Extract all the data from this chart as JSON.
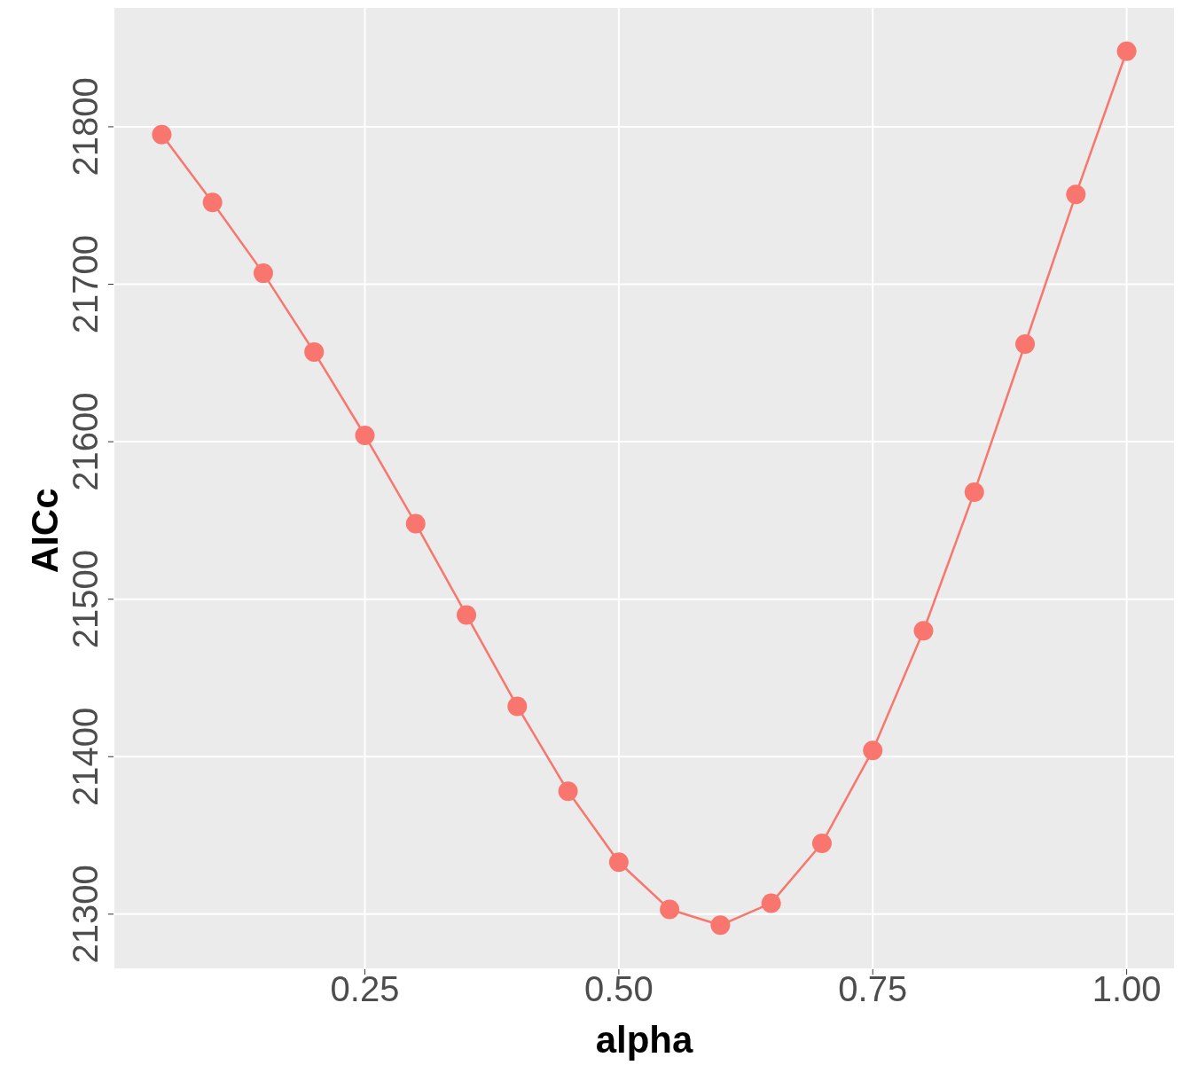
{
  "chart_data": {
    "type": "line",
    "xlabel": "alpha",
    "ylabel": "AICc",
    "x": [
      0.05,
      0.1,
      0.15,
      0.2,
      0.25,
      0.3,
      0.35,
      0.4,
      0.45,
      0.5,
      0.55,
      0.6,
      0.65,
      0.7,
      0.75,
      0.8,
      0.85,
      0.9,
      0.95,
      1.0
    ],
    "series": [
      {
        "color": "#f8766d",
        "values": [
          21795,
          21752,
          21707,
          21657,
          21604,
          21548,
          21490,
          21432,
          21378,
          21333,
          21303,
          21293,
          21307,
          21345,
          21404,
          21480,
          21568,
          21662,
          21757,
          21848
        ]
      }
    ],
    "xlim": [
      0.0025,
      1.0475
    ],
    "ylim": [
      21265,
      21876
    ],
    "xticks": [
      {
        "value": 0.25,
        "label": "0.25"
      },
      {
        "value": 0.5,
        "label": "0.50"
      },
      {
        "value": 0.75,
        "label": "0.75"
      },
      {
        "value": 1.0,
        "label": "1.00"
      }
    ],
    "yticks": [
      21300,
      21400,
      21500,
      21600,
      21700,
      21800
    ],
    "grid": true,
    "marker": "circle",
    "line_style": "solid",
    "legend": false
  }
}
